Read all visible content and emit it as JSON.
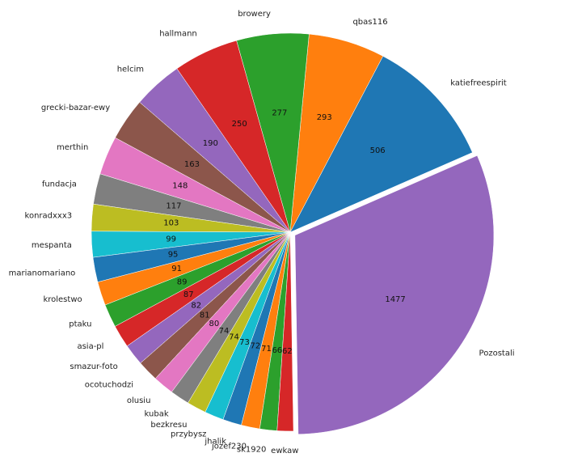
{
  "chart_data": {
    "type": "pie",
    "start_angle_deg": 23.6,
    "direction": "counterclockwise",
    "slices": [
      {
        "label": "katiefreespirit",
        "value": 506,
        "color": "#1f77b4"
      },
      {
        "label": "qbas116",
        "value": 293,
        "color": "#ff7f0e"
      },
      {
        "label": "browery",
        "value": 277,
        "color": "#2ca02c"
      },
      {
        "label": "hallmann",
        "value": 250,
        "color": "#d62728"
      },
      {
        "label": "helcim",
        "value": 190,
        "color": "#9467bd"
      },
      {
        "label": "grecki-bazar-ewy",
        "value": 163,
        "color": "#8c564b"
      },
      {
        "label": "merthin",
        "value": 148,
        "color": "#e377c2"
      },
      {
        "label": "fundacja",
        "value": 117,
        "color": "#7f7f7f"
      },
      {
        "label": "konradxxx3",
        "value": 103,
        "color": "#bcbd22"
      },
      {
        "label": "mespanta",
        "value": 99,
        "color": "#17becf"
      },
      {
        "label": "marianomariano",
        "value": 95,
        "color": "#1f77b4"
      },
      {
        "label": "krolestwo",
        "value": 91,
        "color": "#ff7f0e"
      },
      {
        "label": "ptaku",
        "value": 89,
        "color": "#2ca02c"
      },
      {
        "label": "asia-pl",
        "value": 87,
        "color": "#d62728"
      },
      {
        "label": "smazur-foto",
        "value": 82,
        "color": "#9467bd"
      },
      {
        "label": "ocotuchodzi",
        "value": 81,
        "color": "#8c564b"
      },
      {
        "label": "olusiu",
        "value": 80,
        "color": "#e377c2"
      },
      {
        "label": "kubak",
        "value": 74,
        "color": "#7f7f7f"
      },
      {
        "label": "bezkresu",
        "value": 74,
        "color": "#bcbd22"
      },
      {
        "label": "przybysz",
        "value": 73,
        "color": "#17becf"
      },
      {
        "label": "jhalik",
        "value": 72,
        "color": "#1f77b4"
      },
      {
        "label": "jozef230",
        "value": 71,
        "color": "#ff7f0e"
      },
      {
        "label": "sk1920",
        "value": 66,
        "color": "#2ca02c"
      },
      {
        "label": "ewkaw",
        "value": 62,
        "color": "#d62728"
      },
      {
        "label": "Pozostali",
        "value": 1477,
        "color": "#9467bd",
        "exploded": true
      }
    ]
  }
}
